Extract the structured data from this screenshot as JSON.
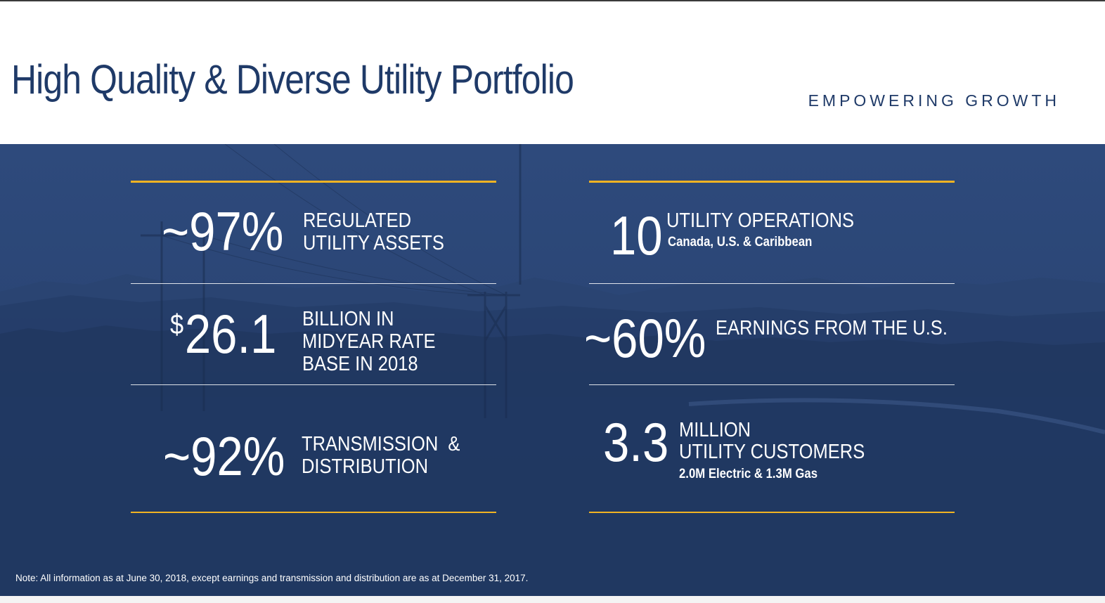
{
  "header": {
    "title": "High Quality & Diverse Utility Portfolio",
    "tagline": "EMPOWERING GROWTH"
  },
  "left_stats": [
    {
      "value": "~97%",
      "label_lines": [
        "REGULATED",
        "UTILITY ASSETS"
      ]
    },
    {
      "currency": "$",
      "value": "26.1",
      "label_lines": [
        "BILLION IN",
        "MIDYEAR RATE",
        "BASE IN 2018"
      ]
    },
    {
      "value": "~92%",
      "label_lines": [
        "TRANSMISSION  &",
        "DISTRIBUTION"
      ]
    }
  ],
  "right_stats": [
    {
      "value": "10",
      "label": "UTILITY OPERATIONS",
      "sublabel": "Canada, U.S. & Caribbean"
    },
    {
      "value": "~60%",
      "label": "EARNINGS FROM THE U.S."
    },
    {
      "value": "3.3",
      "label_lines": [
        "MILLION",
        "UTILITY CUSTOMERS"
      ],
      "sublabel": "2.0M Electric & 1.3M Gas"
    }
  ],
  "footer": {
    "note": "Note: All information as at June 30, 2018, except earnings and transmission and distribution are as at December 31, 2017."
  },
  "colors": {
    "title": "#1f3a68",
    "banner": "#2b4676",
    "accent_gold": "#f0b323",
    "text_on_banner": "#ffffff"
  }
}
